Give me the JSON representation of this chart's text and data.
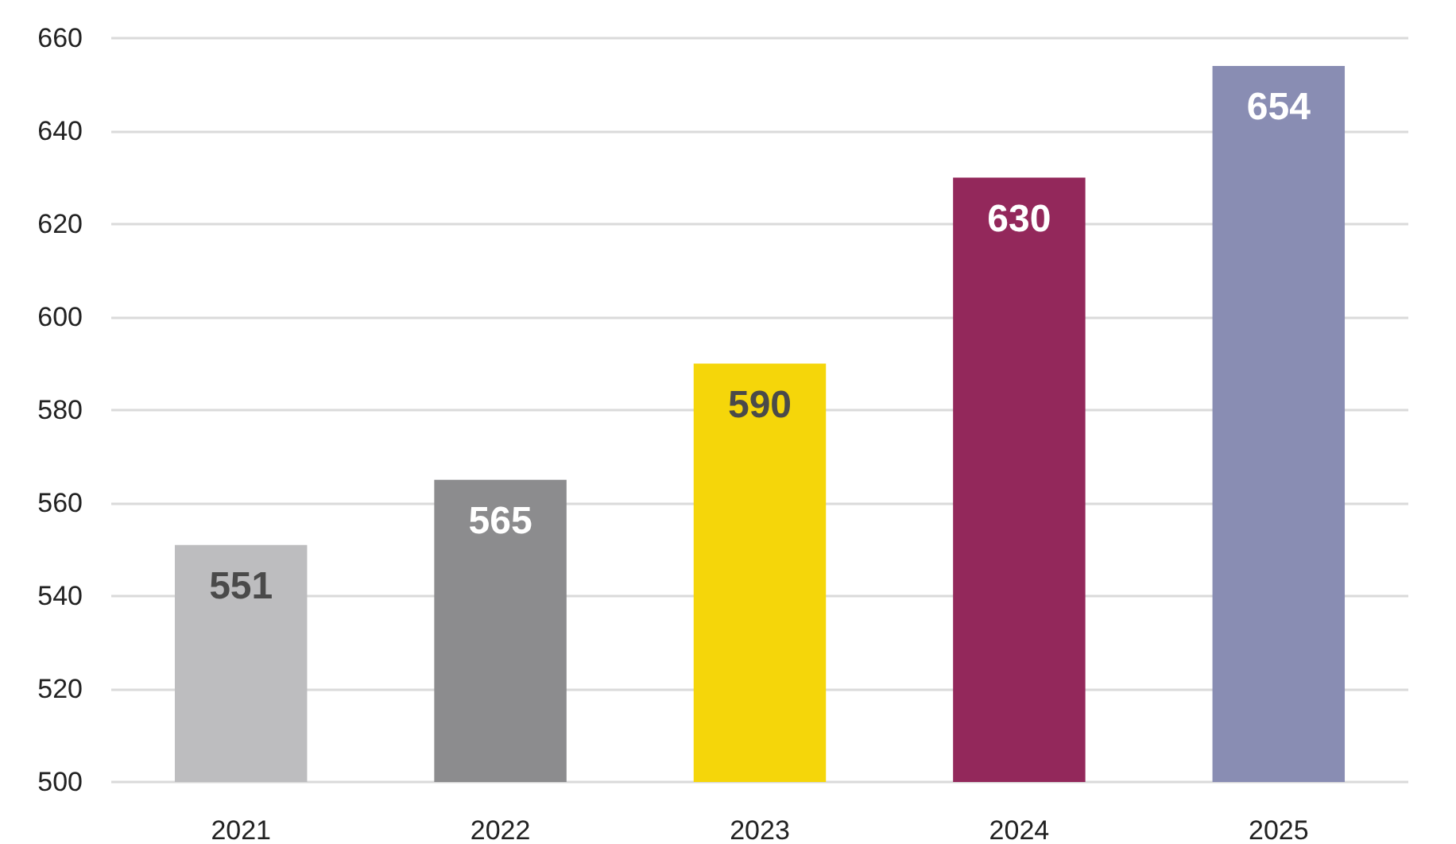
{
  "chart_data": {
    "type": "bar",
    "categories": [
      "2021",
      "2022",
      "2023",
      "2024",
      "2025"
    ],
    "values": [
      551,
      565,
      590,
      630,
      654
    ],
    "colors": [
      "#bdbdbf",
      "#8c8c8e",
      "#f5d60a",
      "#93285b",
      "#898db3"
    ],
    "ylim": [
      500,
      660
    ],
    "yticks": [
      500,
      520,
      540,
      560,
      580,
      600,
      620,
      640,
      660
    ],
    "grid": "y",
    "data_labels": true
  }
}
